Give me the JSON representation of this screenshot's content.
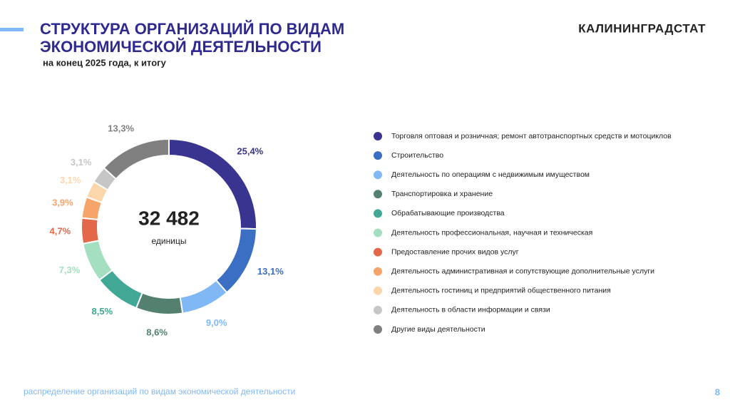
{
  "header": {
    "title_lines": [
      "СТРУКТУРА ОРГАНИЗАЦИЙ ПО ВИДАМ",
      "ЭКОНОМИЧЕСКОЙ ДЕЯТЕЛЬНОСТИ"
    ],
    "subtitle": "на конец 2025 года, к итогу",
    "brand": "КАЛИНИНГРАДСТАТ"
  },
  "chart_data": {
    "type": "pie",
    "donut": true,
    "center_text": "32 482",
    "center_label": "единицы",
    "categories": [
      "Торговля оптовая и розничная; ремонт автотранспортных средств и мотоциклов",
      "Строительство",
      "Деятельность по операциям с недвижимым имуществом",
      "Транспортировка и хранение",
      "Обрабатывающие производства",
      "Деятельность профессиональная, научная и техническая",
      "Предоставление прочих видов услуг",
      "Деятельность административная и сопутствующие дополнительные услуги",
      "Деятельность гостиниц и предприятий общественного питания",
      "Деятельность в области информации и связи",
      "Другие виды деятельности"
    ],
    "values": [
      25.4,
      13.1,
      9.0,
      8.6,
      8.5,
      7.3,
      4.7,
      3.9,
      3.1,
      3.1,
      13.3
    ],
    "value_labels": [
      "25,4%",
      "13,1%",
      "9,0%",
      "8,6%",
      "8,5%",
      "7,3%",
      "4,7%",
      "3,9%",
      "3,1%",
      "3,1%",
      "13,3%"
    ],
    "colors": [
      "#38348f",
      "#3a6fc4",
      "#80b8f5",
      "#53806f",
      "#40a895",
      "#a4dfc1",
      "#e3684a",
      "#f7a46b",
      "#fcd6ab",
      "#c6c6c6",
      "#808080"
    ],
    "legend": "right"
  },
  "footer": {
    "text": "распределение организаций по видам экономической деятельности",
    "page": "8"
  }
}
